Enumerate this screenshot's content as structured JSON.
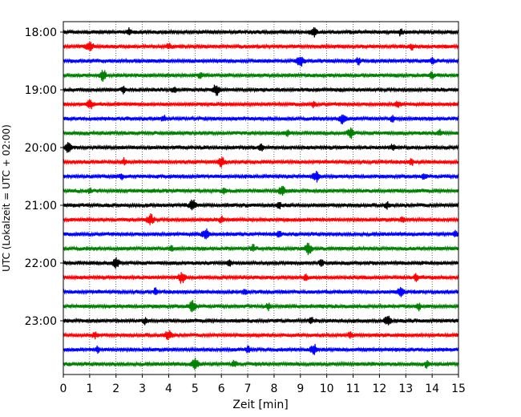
{
  "chart_data": {
    "type": "line",
    "xlabel": "Zeit  [min]",
    "ylabel": "UTC (Lokalzeit = UTC + 02:00)",
    "xlim": [
      0,
      15
    ],
    "x_ticks": [
      "0",
      "1",
      "2",
      "3",
      "4",
      "5",
      "6",
      "7",
      "8",
      "9",
      "10",
      "11",
      "12",
      "13",
      "14",
      "15"
    ],
    "y_ticks": [
      "18:00",
      "19:00",
      "20:00",
      "21:00",
      "22:00",
      "23:00"
    ],
    "grid": "vertical dotted lines at each minute",
    "trace_interval_min": 15,
    "colors": [
      "#000000",
      "#ff0000",
      "#0000ff",
      "#008000"
    ],
    "series": [
      {
        "start": "18:00",
        "color": "#000000",
        "events": [
          9.5,
          2.5,
          12.8
        ]
      },
      {
        "start": "18:15",
        "color": "#ff0000",
        "events": [
          1.0,
          4.0,
          13.2
        ]
      },
      {
        "start": "18:30",
        "color": "#0000ff",
        "events": [
          9.0,
          11.2,
          14.0
        ]
      },
      {
        "start": "18:45",
        "color": "#008000",
        "events": [
          1.5,
          5.2,
          14.0
        ]
      },
      {
        "start": "19:00",
        "color": "#000000",
        "events": [
          5.8,
          4.2,
          2.3
        ]
      },
      {
        "start": "19:15",
        "color": "#ff0000",
        "events": [
          1.0,
          9.5,
          12.7
        ]
      },
      {
        "start": "19:30",
        "color": "#0000ff",
        "events": [
          10.6,
          3.8,
          12.5
        ]
      },
      {
        "start": "19:45",
        "color": "#008000",
        "events": [
          10.9,
          8.5,
          14.3
        ]
      },
      {
        "start": "20:00",
        "color": "#000000",
        "events": [
          0.2,
          12.5,
          7.5
        ]
      },
      {
        "start": "20:15",
        "color": "#ff0000",
        "events": [
          6.0,
          13.2,
          2.3
        ]
      },
      {
        "start": "20:30",
        "color": "#0000ff",
        "events": [
          9.6,
          2.2,
          13.7
        ]
      },
      {
        "start": "20:45",
        "color": "#008000",
        "events": [
          8.3,
          6.1,
          1.0
        ]
      },
      {
        "start": "21:00",
        "color": "#000000",
        "events": [
          4.9,
          8.2,
          12.3
        ]
      },
      {
        "start": "21:15",
        "color": "#ff0000",
        "events": [
          3.3,
          6.0,
          12.9
        ]
      },
      {
        "start": "21:30",
        "color": "#0000ff",
        "events": [
          5.4,
          8.2,
          14.9
        ]
      },
      {
        "start": "21:45",
        "color": "#008000",
        "events": [
          9.3,
          7.2,
          4.1
        ]
      },
      {
        "start": "22:00",
        "color": "#000000",
        "events": [
          2.0,
          6.3,
          9.8
        ]
      },
      {
        "start": "22:15",
        "color": "#ff0000",
        "events": [
          4.5,
          9.2,
          13.4
        ]
      },
      {
        "start": "22:30",
        "color": "#0000ff",
        "events": [
          12.8,
          6.9,
          3.5
        ]
      },
      {
        "start": "22:45",
        "color": "#008000",
        "events": [
          4.9,
          7.8,
          13.5
        ]
      },
      {
        "start": "23:00",
        "color": "#000000",
        "events": [
          12.3,
          3.1,
          9.4
        ]
      },
      {
        "start": "23:15",
        "color": "#ff0000",
        "events": [
          4.0,
          10.9,
          1.2
        ]
      },
      {
        "start": "23:30",
        "color": "#0000ff",
        "events": [
          9.5,
          7.0,
          1.3
        ]
      },
      {
        "start": "23:45",
        "color": "#008000",
        "events": [
          5.0,
          6.5,
          13.8
        ]
      }
    ]
  }
}
